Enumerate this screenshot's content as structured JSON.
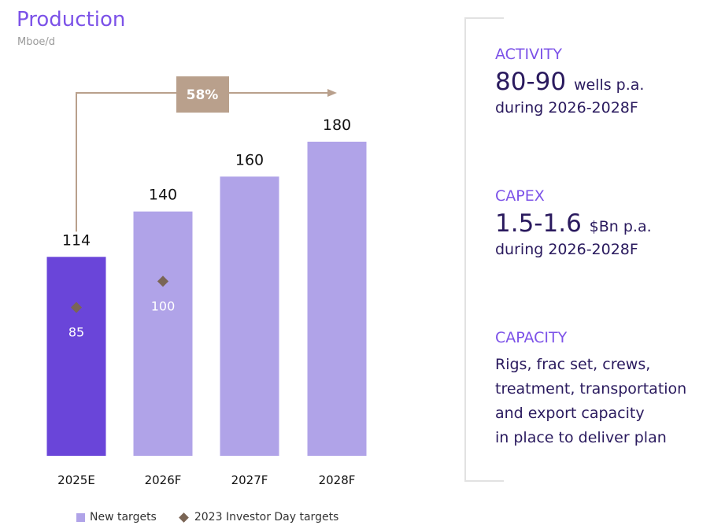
{
  "chart_data": {
    "type": "bar",
    "title": "Production",
    "ylabel": "Mboe/d",
    "categories": [
      "2025E",
      "2026F",
      "2027F",
      "2028F"
    ],
    "series": [
      {
        "name": "New targets",
        "values": [
          114,
          140,
          160,
          180
        ]
      },
      {
        "name": "2023 Investor Day targets",
        "values": [
          85,
          100,
          null,
          null
        ]
      }
    ],
    "growth_annotation": "58%",
    "ylim": [
      0,
      180
    ],
    "colors": {
      "highlight_bar": "#6a45d9",
      "bar": "#b0a3e8",
      "diamond": "#7a6555",
      "arrow": "#b9a08c"
    }
  },
  "side": {
    "activity": {
      "header": "ACTIVITY",
      "value": "80-90",
      "unit": "wells p.a.",
      "period": "during 2026-2028F"
    },
    "capex": {
      "header": "CAPEX",
      "value": "1.5-1.6",
      "unit": "$Bn p.a.",
      "period": "during 2026-2028F"
    },
    "capacity": {
      "header": "CAPACITY",
      "lines": [
        "Rigs, frac set, crews,",
        "treatment, transportation",
        "and export capacity",
        "in place to deliver plan"
      ]
    }
  }
}
